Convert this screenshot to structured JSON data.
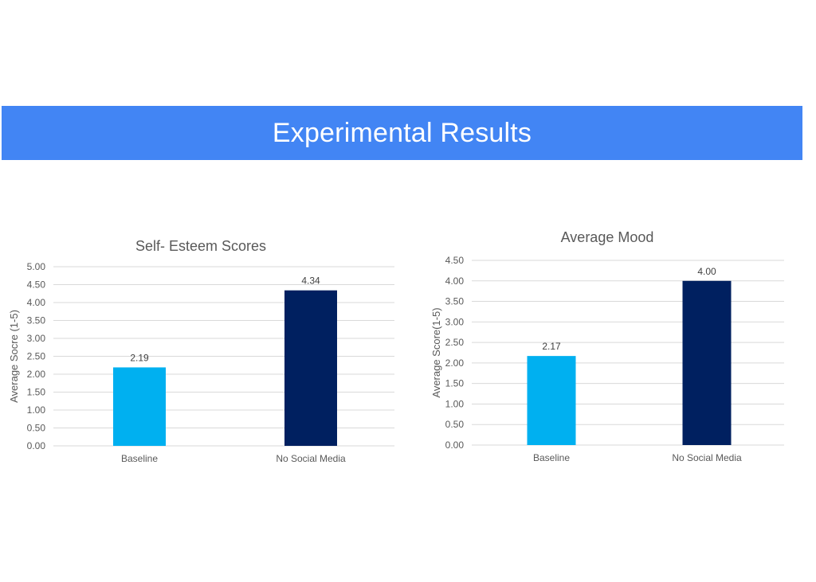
{
  "header": {
    "title": "Experimental Results"
  },
  "colors": {
    "banner": "#4285f4",
    "baseline_bar": "#00b0f0",
    "no_social_bar": "#002060"
  },
  "chart_data": [
    {
      "type": "bar",
      "title": "Self- Esteem Scores",
      "xlabel": "",
      "ylabel": "Average Socre (1-5)",
      "categories": [
        "Baseline",
        "No Social Media"
      ],
      "values": [
        2.19,
        4.34
      ],
      "data_labels": [
        "2.19",
        "4.34"
      ],
      "bar_colors": [
        "#00b0f0",
        "#002060"
      ],
      "ylim": [
        0,
        5
      ],
      "yticks": [
        "0.00",
        "0.50",
        "1.00",
        "1.50",
        "2.00",
        "2.50",
        "3.00",
        "3.50",
        "4.00",
        "4.50",
        "5.00"
      ],
      "grid": true,
      "legend": "none"
    },
    {
      "type": "bar",
      "title": "Average Mood",
      "xlabel": "",
      "ylabel": "Average Score(1-5)",
      "categories": [
        "Baseline",
        "No Social Media"
      ],
      "values": [
        2.17,
        4.0
      ],
      "data_labels": [
        "2.17",
        "4.00"
      ],
      "bar_colors": [
        "#00b0f0",
        "#002060"
      ],
      "ylim": [
        0,
        4.5
      ],
      "yticks": [
        "0.00",
        "0.50",
        "1.00",
        "1.50",
        "2.00",
        "2.50",
        "3.00",
        "3.50",
        "4.00",
        "4.50"
      ],
      "grid": true,
      "legend": "none"
    }
  ]
}
